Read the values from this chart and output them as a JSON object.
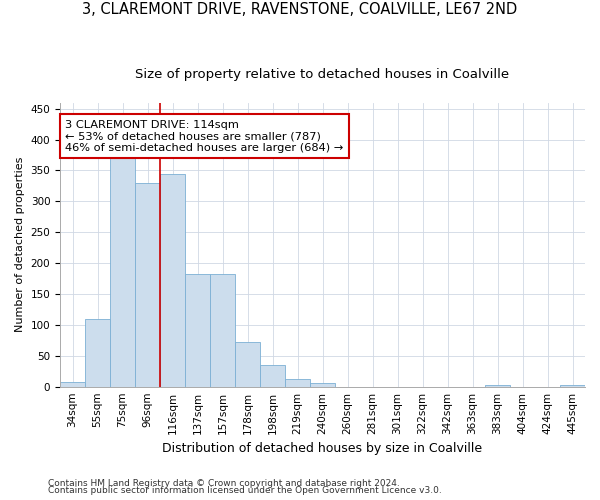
{
  "title1": "3, CLAREMONT DRIVE, RAVENSTONE, COALVILLE, LE67 2ND",
  "title2": "Size of property relative to detached houses in Coalville",
  "xlabel": "Distribution of detached houses by size in Coalville",
  "ylabel": "Number of detached properties",
  "categories": [
    "34sqm",
    "55sqm",
    "75sqm",
    "96sqm",
    "116sqm",
    "137sqm",
    "157sqm",
    "178sqm",
    "198sqm",
    "219sqm",
    "240sqm",
    "260sqm",
    "281sqm",
    "301sqm",
    "322sqm",
    "342sqm",
    "363sqm",
    "383sqm",
    "404sqm",
    "424sqm",
    "445sqm"
  ],
  "values": [
    8,
    110,
    375,
    330,
    345,
    182,
    182,
    72,
    35,
    12,
    6,
    0,
    0,
    0,
    0,
    0,
    0,
    2,
    0,
    0,
    3
  ],
  "bar_color": "#ccdded",
  "bar_edge_color": "#7bafd4",
  "grid_color": "#d0d8e4",
  "vline_color": "#cc0000",
  "vline_index": 4,
  "annotation_text": "3 CLAREMONT DRIVE: 114sqm\n← 53% of detached houses are smaller (787)\n46% of semi-detached houses are larger (684) →",
  "annotation_box_color": "#ffffff",
  "annotation_box_edge_color": "#cc0000",
  "footnote1": "Contains HM Land Registry data © Crown copyright and database right 2024.",
  "footnote2": "Contains public sector information licensed under the Open Government Licence v3.0.",
  "bg_color": "#ffffff",
  "plot_bg_color": "#ffffff",
  "ylim": [
    0,
    460
  ],
  "title1_fontsize": 10.5,
  "title2_fontsize": 9.5,
  "xlabel_fontsize": 9,
  "ylabel_fontsize": 8,
  "tick_fontsize": 7.5,
  "footnote_fontsize": 6.5
}
